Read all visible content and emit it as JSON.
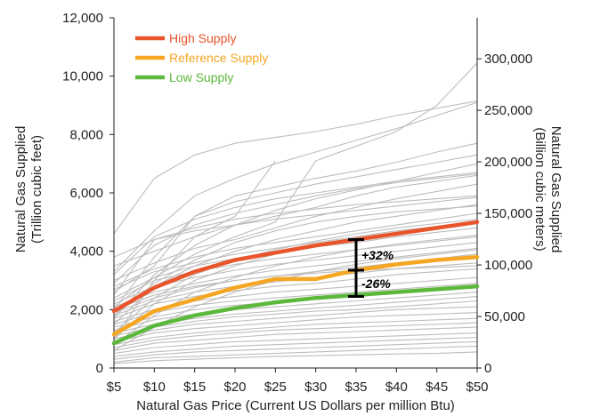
{
  "chart_data": {
    "type": "line",
    "x": [
      5,
      10,
      15,
      20,
      25,
      30,
      35,
      40,
      45,
      50
    ],
    "xticks": [
      "$5",
      "$10",
      "$15",
      "$20",
      "$25",
      "$30",
      "$35",
      "$40",
      "$45",
      "$50"
    ],
    "xlabel": "Natural Gas Price (Current US Dollars per million Btu)",
    "ylabel_left": [
      "Natural Gas Supplied",
      "(Trillion cubic feet)"
    ],
    "ylabel_right": [
      "Natural Gas Supplied",
      "(Billion cubic meters)"
    ],
    "xlim": [
      5,
      50
    ],
    "ylim": [
      0,
      12000
    ],
    "yticks_left": [
      "0",
      "2,000",
      "4,000",
      "6,000",
      "8,000",
      "10,000",
      "12,000"
    ],
    "yticks_right": [
      "0",
      "50,000",
      "100,000",
      "150,000",
      "200,000",
      "250,000",
      "300,000"
    ],
    "series": [
      {
        "name": "High Supply",
        "color": "#e8542b",
        "values": [
          1950,
          2750,
          3300,
          3700,
          3950,
          4200,
          4400,
          4600,
          4800,
          5000
        ]
      },
      {
        "name": "Reference Supply",
        "color": "#f5a623",
        "values": [
          1150,
          1950,
          2350,
          2750,
          3050,
          3050,
          3350,
          3550,
          3700,
          3800
        ]
      },
      {
        "name": "Low Supply",
        "color": "#5cb83b",
        "values": [
          850,
          1450,
          1800,
          2050,
          2250,
          2400,
          2500,
          2600,
          2700,
          2800
        ]
      }
    ],
    "background_series": [
      [
        4600,
        6500,
        7300,
        7700,
        7900,
        8100,
        8350,
        8650,
        8900,
        9150
      ],
      [
        3300,
        4700,
        5900,
        6500,
        7000,
        7400,
        7800,
        8200,
        8650,
        9100
      ],
      [
        2600,
        3500,
        5200,
        5900,
        6200,
        6500,
        6750,
        7050,
        7400,
        7700
      ],
      [
        2100,
        3100,
        3900,
        4500,
        5000,
        7100,
        7600,
        8100,
        9000,
        10450
      ],
      [
        3500,
        4000,
        4500,
        4900,
        5200,
        5500,
        5900,
        6200,
        6400,
        6600
      ],
      [
        3000,
        3600,
        4100,
        4400,
        4800,
        5200,
        5500,
        5800,
        6050,
        6300
      ],
      [
        2800,
        3400,
        3800,
        4100,
        4300,
        4500,
        4700,
        4900,
        5100,
        5300
      ],
      [
        2700,
        3300,
        3600,
        3900,
        4100,
        4300,
        4500,
        4700,
        4850,
        5000
      ],
      [
        2400,
        3100,
        3500,
        3750,
        3950,
        4150,
        4300,
        4500,
        4650,
        4800
      ],
      [
        2300,
        3000,
        3300,
        3550,
        3750,
        3900,
        4050,
        4200,
        4350,
        4500
      ],
      [
        2200,
        2800,
        3100,
        3350,
        3550,
        3700,
        3850,
        4000,
        4150,
        4300
      ],
      [
        2100,
        2600,
        2900,
        3150,
        3350,
        3500,
        3650,
        3800,
        3950,
        4100
      ],
      [
        1900,
        2400,
        2750,
        3000,
        3150,
        3300,
        3450,
        3600,
        3750,
        3900
      ],
      [
        1800,
        2300,
        2600,
        2800,
        2950,
        3100,
        3250,
        3400,
        3500,
        3600
      ],
      [
        1700,
        2200,
        2450,
        2650,
        2800,
        2900,
        3050,
        3200,
        3300,
        3400
      ],
      [
        1600,
        2000,
        2300,
        2450,
        2600,
        2700,
        2800,
        2900,
        3000,
        3100
      ],
      [
        1500,
        1900,
        2150,
        2300,
        2400,
        2500,
        2600,
        2700,
        2800,
        2900
      ],
      [
        1400,
        1750,
        2000,
        2150,
        2250,
        2350,
        2450,
        2550,
        2650,
        2750
      ],
      [
        1300,
        1650,
        1850,
        2000,
        2100,
        2200,
        2300,
        2400,
        2500,
        2600
      ],
      [
        1200,
        1500,
        1700,
        1850,
        1950,
        2050,
        2150,
        2250,
        2350,
        2450
      ],
      [
        1100,
        1400,
        1600,
        1750,
        1850,
        1950,
        2000,
        2100,
        2200,
        2300
      ],
      [
        1000,
        1300,
        1500,
        1600,
        1700,
        1800,
        1900,
        2000,
        2050,
        2100
      ],
      [
        900,
        1200,
        1350,
        1450,
        1550,
        1650,
        1750,
        1800,
        1850,
        1900
      ],
      [
        800,
        1050,
        1200,
        1300,
        1400,
        1500,
        1550,
        1600,
        1650,
        1700
      ],
      [
        700,
        950,
        1100,
        1200,
        1300,
        1350,
        1400,
        1450,
        1500,
        1550
      ],
      [
        600,
        850,
        950,
        1050,
        1150,
        1200,
        1250,
        1300,
        1350,
        1400
      ],
      [
        500,
        700,
        800,
        900,
        950,
        1000,
        1050,
        1100,
        1150,
        1200
      ],
      [
        400,
        550,
        650,
        750,
        800,
        850,
        900,
        950,
        1000,
        1050
      ],
      [
        300,
        450,
        550,
        600,
        650,
        700,
        750,
        800,
        850,
        900
      ],
      [
        200,
        350,
        400,
        450,
        500,
        550,
        600,
        650,
        700,
        750
      ],
      [
        150,
        250,
        300,
        350,
        400,
        420,
        450,
        480,
        500,
        550
      ],
      [
        2000,
        3800,
        5200,
        5700,
        6000,
        6300,
        6550,
        6800,
        7050,
        7300
      ],
      [
        1700,
        3200,
        4200,
        4900,
        5400,
        5800,
        6100,
        6400,
        6700,
        7000
      ],
      [
        2500,
        4400,
        4700,
        4900,
        5100,
        5250,
        5400,
        5550,
        5700,
        5850
      ],
      [
        1500,
        2800,
        3500,
        4000,
        4400,
        4700,
        5000,
        5200,
        5400,
        5600
      ],
      [
        1000,
        2200,
        3000,
        3500,
        3900,
        4200,
        4450,
        4650,
        4850,
        5000
      ],
      [
        3200,
        4500,
        5100,
        5500,
        5800,
        6000,
        6200,
        6400,
        6550,
        6700
      ],
      [
        1200,
        2400,
        3200,
        3700,
        4050,
        4350,
        4600,
        4800,
        4950,
        5100
      ],
      [
        800,
        1800,
        2600,
        3100,
        3500,
        3800,
        4050,
        4250,
        4400,
        4550
      ],
      [
        2900,
        4200,
        4900,
        5300,
        5600,
        5900,
        6150,
        6350,
        6500,
        6650
      ],
      [
        600,
        1400,
        2100,
        2600,
        3000,
        3300,
        3550,
        3750,
        3900,
        4050
      ],
      [
        3800,
        4400,
        4800,
        5100,
        5300,
        5450,
        5600,
        5700,
        5800,
        5900
      ],
      [
        2000,
        2500,
        2800,
        3000,
        3150,
        3250,
        3350,
        3400,
        3450,
        3500
      ],
      [
        1000,
        3000,
        4500,
        5200,
        7100,
        null,
        null,
        null,
        null,
        null
      ],
      [
        1800,
        2900,
        3700,
        4300,
        4700,
        5000,
        5200,
        5350,
        5450,
        5550
      ]
    ],
    "annotations": [
      {
        "text": "+32%",
        "x": 35,
        "y_from": 3350,
        "y_to": 4400
      },
      {
        "text": "-26%",
        "x": 35,
        "y_from": 2450,
        "y_to": 3350
      }
    ],
    "legend_position": "top-left",
    "grid": false
  }
}
